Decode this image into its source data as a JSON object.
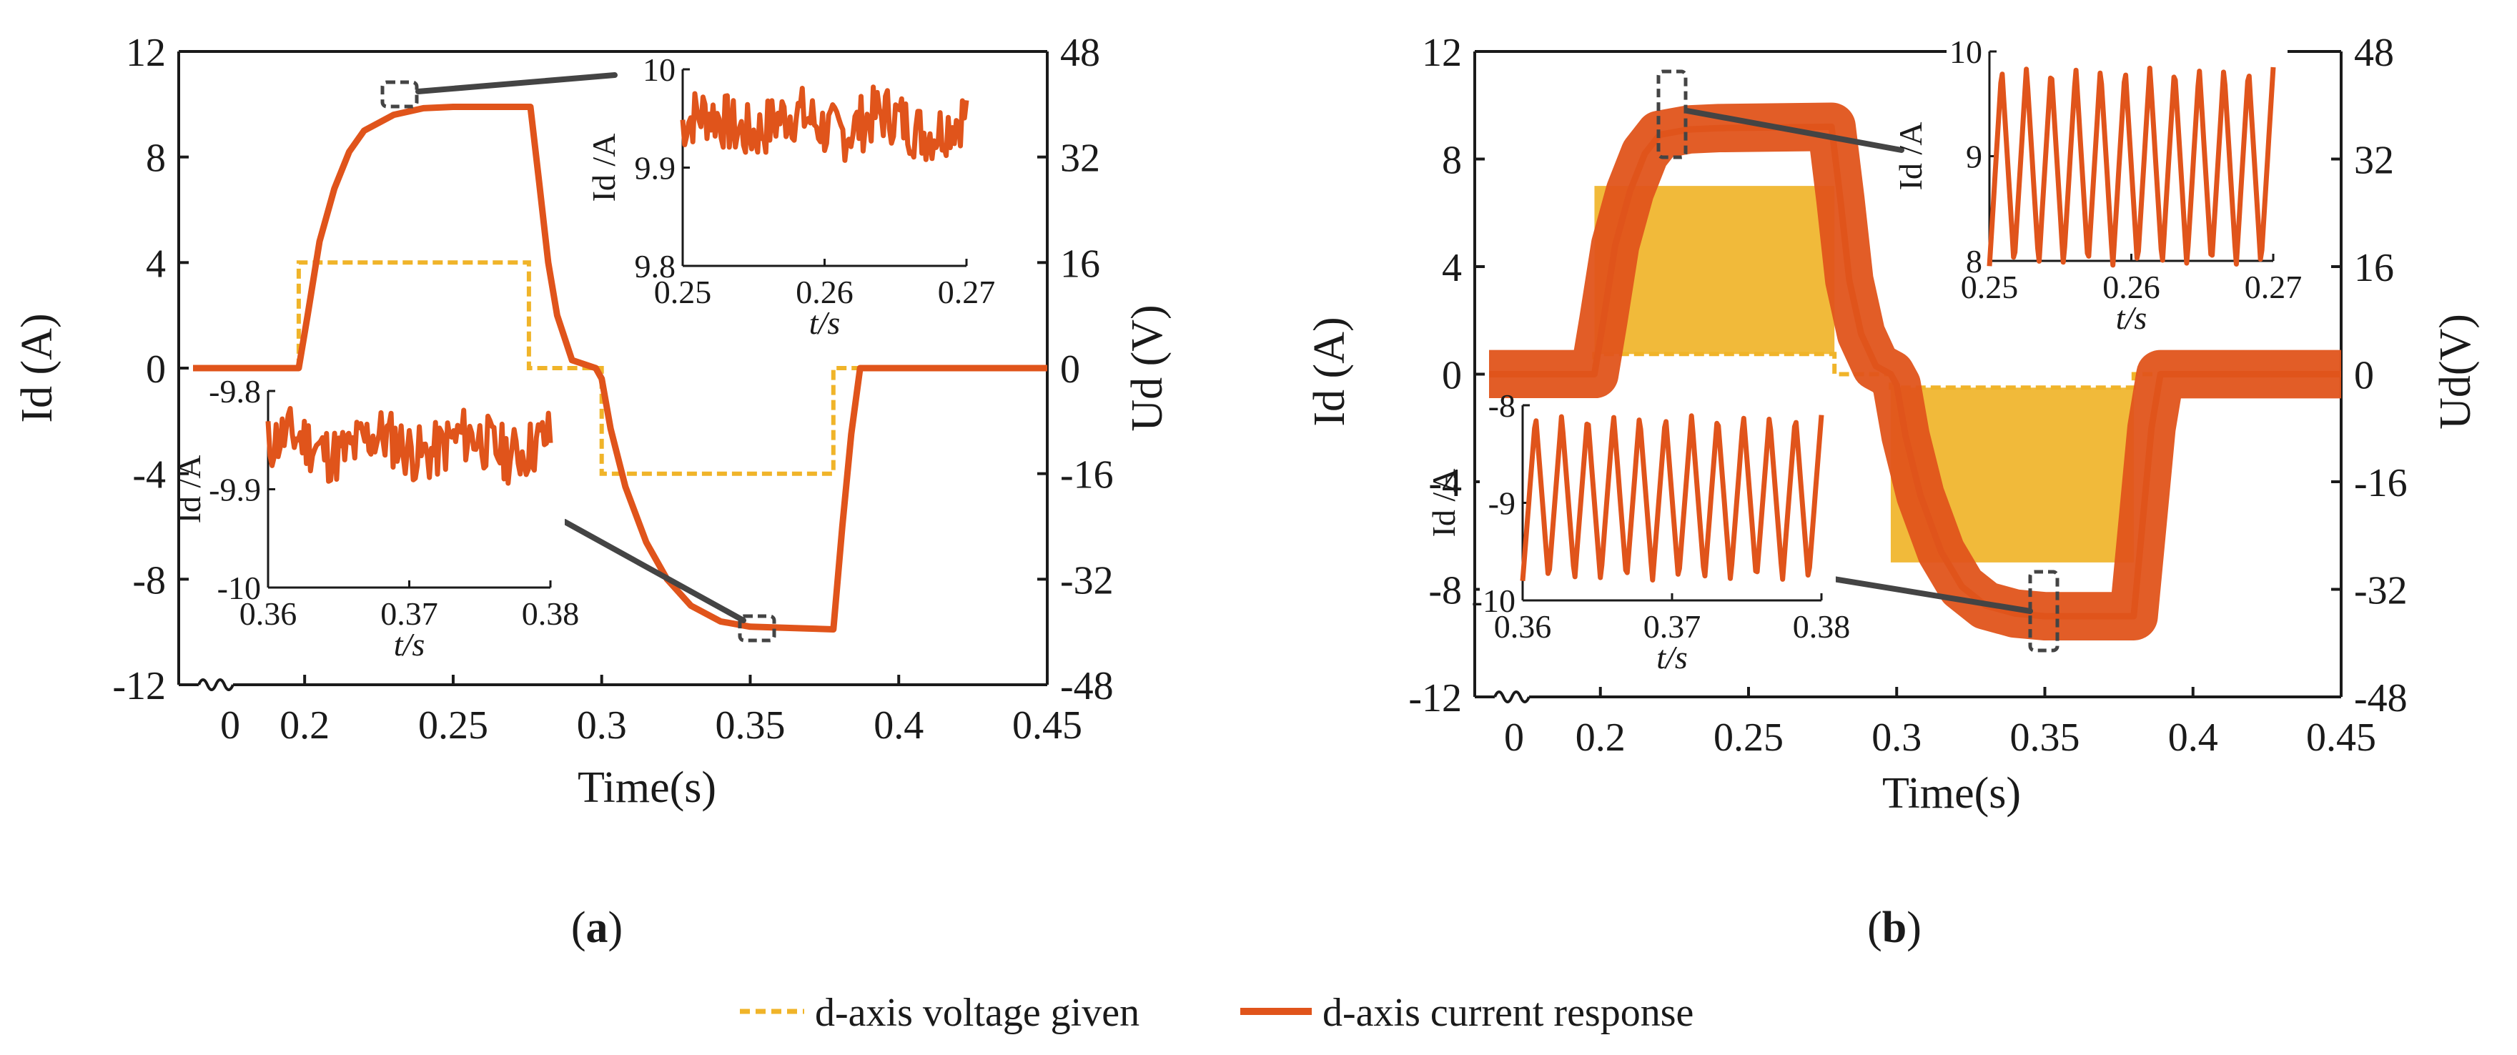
{
  "colors": {
    "voltage": "#F0B429",
    "current": "#E0541B",
    "axis": "#1a1a1a",
    "callout": "#444444"
  },
  "legend": {
    "voltage_label": "d-axis voltage given",
    "current_label": "d-axis current response"
  },
  "chart_data": [
    {
      "id": "a",
      "type": "line",
      "caption_prefix": "(",
      "caption_letter": "a",
      "caption_suffix": ")",
      "title": "",
      "xlabel": "Time(s)",
      "ylabel_left": "Id (A)",
      "ylabel_right": "Ud (V)",
      "xlim": [
        0.15,
        0.45
      ],
      "ylim_left": [
        -12,
        12
      ],
      "ylim_right": [
        -48,
        48
      ],
      "axis_break": true,
      "xticks": [
        0.2,
        0.25,
        0.3,
        0.35,
        0.4,
        0.45
      ],
      "xtick_labels": [
        "0",
        "0.2",
        "0.25",
        "0.3",
        "0.35",
        "0.4",
        "0.45"
      ],
      "yticks_left": [
        -12,
        -8,
        -4,
        0,
        4,
        8,
        12
      ],
      "yticks_right": [
        -48,
        -32,
        -16,
        0,
        16,
        32,
        48
      ],
      "series": [
        {
          "name": "d-axis voltage given",
          "axis": "right",
          "style": "dashed",
          "points": [
            [
              0.15,
              0
            ],
            [
              0.198,
              0
            ],
            [
              0.198,
              16
            ],
            [
              0.2755,
              16
            ],
            [
              0.2755,
              0
            ],
            [
              0.3,
              0
            ],
            [
              0.3,
              -16
            ],
            [
              0.378,
              -16
            ],
            [
              0.378,
              0
            ],
            [
              0.45,
              0
            ]
          ]
        },
        {
          "name": "d-axis current response",
          "axis": "left",
          "style": "solid",
          "points": [
            [
              0.15,
              0
            ],
            [
              0.198,
              0
            ],
            [
              0.201,
              2
            ],
            [
              0.205,
              4.8
            ],
            [
              0.21,
              6.8
            ],
            [
              0.215,
              8.2
            ],
            [
              0.22,
              9
            ],
            [
              0.23,
              9.6
            ],
            [
              0.24,
              9.85
            ],
            [
              0.25,
              9.9
            ],
            [
              0.276,
              9.9
            ],
            [
              0.279,
              7
            ],
            [
              0.282,
              4
            ],
            [
              0.285,
              2
            ],
            [
              0.29,
              0.3
            ],
            [
              0.298,
              0
            ],
            [
              0.3,
              -0.4
            ],
            [
              0.303,
              -2.3
            ],
            [
              0.308,
              -4.5
            ],
            [
              0.315,
              -6.6
            ],
            [
              0.322,
              -8
            ],
            [
              0.33,
              -9
            ],
            [
              0.34,
              -9.6
            ],
            [
              0.35,
              -9.8
            ],
            [
              0.378,
              -9.9
            ],
            [
              0.381,
              -6
            ],
            [
              0.384,
              -2.5
            ],
            [
              0.387,
              0
            ],
            [
              0.45,
              0
            ]
          ]
        }
      ],
      "insets": [
        {
          "name": "inset-upper",
          "xlabel": "t/s",
          "ylabel": "Id /A",
          "xlim": [
            0.25,
            0.27
          ],
          "ylim": [
            9.8,
            10
          ],
          "xtick_labels": [
            "0.25",
            "0.26",
            "0.27"
          ],
          "ytick_labels": [
            "9.8",
            "9.9",
            "10"
          ],
          "ytick_values": [
            9.8,
            9.9,
            10
          ],
          "series": {
            "name": "d-axis current response",
            "type": "noisy",
            "base": 9.945,
            "amplitude": 0.03,
            "cycles": 0,
            "seed": 7
          }
        },
        {
          "name": "inset-lower",
          "xlabel": "t/s",
          "ylabel": "Id /A",
          "xlim": [
            0.36,
            0.38
          ],
          "ylim": [
            -10,
            -9.8
          ],
          "xtick_labels": [
            "0.36",
            "0.37",
            "0.38"
          ],
          "ytick_labels": [
            "-9.8",
            "-9.9",
            "-10"
          ],
          "ytick_values": [
            -9.8,
            -9.9,
            -10
          ],
          "series": {
            "name": "d-axis current response",
            "type": "noisy",
            "base": -9.855,
            "amplitude": 0.03,
            "cycles": 0,
            "seed": 11
          }
        }
      ]
    },
    {
      "id": "b",
      "type": "line",
      "caption_prefix": "(",
      "caption_letter": "b",
      "caption_suffix": ")",
      "title": "",
      "xlabel": "Time(s)",
      "ylabel_left": "Id (A)",
      "ylabel_right": "Ud(V)",
      "xlim": [
        0.15,
        0.45
      ],
      "ylim_left": [
        -12,
        12
      ],
      "ylim_right": [
        -48,
        48
      ],
      "axis_break": true,
      "xticks": [
        0.2,
        0.25,
        0.3,
        0.35,
        0.4,
        0.45
      ],
      "xtick_labels": [
        "0",
        "0.2",
        "0.25",
        "0.3",
        "0.35",
        "0.4",
        "0.45"
      ],
      "yticks_left": [
        -12,
        -8,
        -4,
        0,
        4,
        8,
        12
      ],
      "yticks_right": [
        -48,
        -32,
        -16,
        0,
        16,
        32,
        48
      ],
      "series": [
        {
          "name": "d-axis voltage given",
          "axis": "right",
          "style": "band",
          "points": [
            [
              0.15,
              0
            ],
            [
              0.198,
              0
            ],
            [
              0.198,
              3
            ],
            [
              0.279,
              3
            ],
            [
              0.279,
              0
            ],
            [
              0.298,
              0
            ],
            [
              0.298,
              -2
            ],
            [
              0.38,
              -2
            ],
            [
              0.38,
              0
            ],
            [
              0.45,
              0
            ]
          ],
          "bands": [
            {
              "x": [
                0.198,
                0.279
              ],
              "y": [
                3,
                28
              ]
            },
            {
              "x": [
                0.298,
                0.38
              ],
              "y": [
                -28,
                -2
              ]
            }
          ]
        },
        {
          "name": "d-axis current response",
          "axis": "left",
          "style": "thick",
          "points": [
            [
              0.15,
              0
            ],
            [
              0.198,
              0
            ],
            [
              0.201,
              2
            ],
            [
              0.205,
              4.8
            ],
            [
              0.21,
              6.8
            ],
            [
              0.215,
              8.2
            ],
            [
              0.22,
              8.9
            ],
            [
              0.23,
              9.1
            ],
            [
              0.24,
              9.15
            ],
            [
              0.278,
              9.2
            ],
            [
              0.281,
              6.5
            ],
            [
              0.284,
              3.5
            ],
            [
              0.288,
              1.5
            ],
            [
              0.293,
              0.3
            ],
            [
              0.298,
              0
            ],
            [
              0.3,
              -0.4
            ],
            [
              0.303,
              -2.3
            ],
            [
              0.308,
              -4.5
            ],
            [
              0.315,
              -6.6
            ],
            [
              0.322,
              -7.9
            ],
            [
              0.33,
              -8.6
            ],
            [
              0.34,
              -8.9
            ],
            [
              0.35,
              -9
            ],
            [
              0.38,
              -9
            ],
            [
              0.383,
              -5.5
            ],
            [
              0.386,
              -2
            ],
            [
              0.389,
              0
            ],
            [
              0.45,
              0
            ]
          ],
          "band_halfwidth": 0.9
        }
      ],
      "insets": [
        {
          "name": "inset-upper",
          "xlabel": "t/s",
          "ylabel": "Id /A",
          "xlim": [
            0.25,
            0.27
          ],
          "ylim": [
            8,
            10
          ],
          "xtick_labels": [
            "0.25",
            "0.26",
            "0.27"
          ],
          "ytick_labels": [
            "8",
            "9",
            "10"
          ],
          "ytick_values": [
            8,
            9,
            10
          ],
          "series": {
            "name": "d-axis current response",
            "type": "triangle",
            "base": 8.9,
            "amplitude": 0.95,
            "cycles": 11.5,
            "seed": 0
          }
        },
        {
          "name": "inset-lower",
          "xlabel": "t/s",
          "ylabel": "Id /A",
          "xlim": [
            0.36,
            0.38
          ],
          "ylim": [
            -10,
            -8
          ],
          "xtick_labels": [
            "0.36",
            "0.37",
            "0.38"
          ],
          "ytick_labels": [
            "-8",
            "-9",
            "-10"
          ],
          "ytick_values": [
            -8,
            -9,
            -10
          ],
          "series": {
            "name": "d-axis current response",
            "type": "triangle",
            "base": -8.95,
            "amplitude": 0.85,
            "cycles": 11.5,
            "seed": 0
          }
        }
      ]
    }
  ]
}
